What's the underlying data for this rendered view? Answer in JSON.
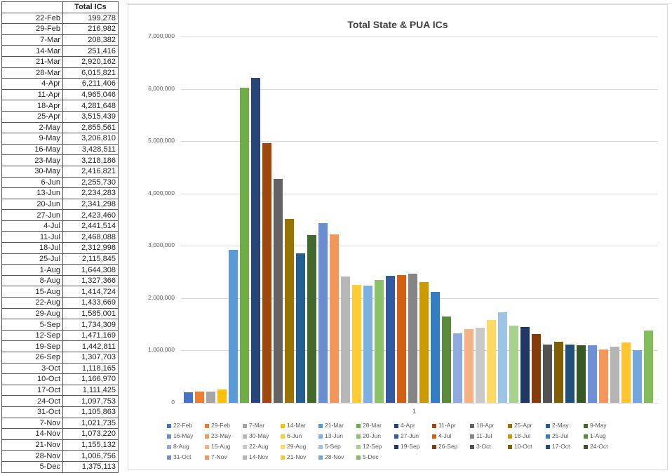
{
  "sheet": {
    "header": [
      "",
      "Total ICs"
    ],
    "rows": [
      [
        "22-Feb",
        "199,278"
      ],
      [
        "29-Feb",
        "216,982"
      ],
      [
        "7-Mar",
        "208,382"
      ],
      [
        "14-Mar",
        "251,416"
      ],
      [
        "21-Mar",
        "2,920,162"
      ],
      [
        "28-Mar",
        "6,015,821"
      ],
      [
        "4-Apr",
        "6,211,406"
      ],
      [
        "11-Apr",
        "4,965,046"
      ],
      [
        "18-Apr",
        "4,281,648"
      ],
      [
        "25-Apr",
        "3,515,439"
      ],
      [
        "2-May",
        "2,855,561"
      ],
      [
        "9-May",
        "3,206,810"
      ],
      [
        "16-May",
        "3,428,511"
      ],
      [
        "23-May",
        "3,218,186"
      ],
      [
        "30-May",
        "2,416,821"
      ],
      [
        "6-Jun",
        "2,255,730"
      ],
      [
        "13-Jun",
        "2,234,283"
      ],
      [
        "20-Jun",
        "2,341,298"
      ],
      [
        "27-Jun",
        "2,423,460"
      ],
      [
        "4-Jul",
        "2,441,514"
      ],
      [
        "11-Jul",
        "2,468,088"
      ],
      [
        "18-Jul",
        "2,312,998"
      ],
      [
        "25-Jul",
        "2,115,845"
      ],
      [
        "1-Aug",
        "1,644,308"
      ],
      [
        "8-Aug",
        "1,327,366"
      ],
      [
        "15-Aug",
        "1,414,724"
      ],
      [
        "22-Aug",
        "1,433,669"
      ],
      [
        "29-Aug",
        "1,585,001"
      ],
      [
        "5-Sep",
        "1,734,309"
      ],
      [
        "12-Sep",
        "1,471,169"
      ],
      [
        "19-Sep",
        "1,442,811"
      ],
      [
        "26-Sep",
        "1,307,703"
      ],
      [
        "3-Oct",
        "1,118,165"
      ],
      [
        "10-Oct",
        "1,166,970"
      ],
      [
        "17-Oct",
        "1,111,425"
      ],
      [
        "24-Oct",
        "1,097,753"
      ],
      [
        "31-Oct",
        "1,105,863"
      ],
      [
        "7-Nov",
        "1,021,735"
      ],
      [
        "14-Nov",
        "1,073,220"
      ],
      [
        "21-Nov",
        "1,155,132"
      ],
      [
        "28-Nov",
        "1,006,756"
      ],
      [
        "5-Dec",
        "1,375,113"
      ]
    ]
  },
  "chart_data": {
    "type": "bar",
    "title": "Total State & PUA ICs",
    "xlabel": "",
    "ylabel": "",
    "x_tick_labels": [
      "1"
    ],
    "ylim": [
      0,
      7000000
    ],
    "y_ticks": [
      "0",
      "1,000,000",
      "2,000,000",
      "3,000,000",
      "4,000,000",
      "5,000,000",
      "6,000,000",
      "7,000,000"
    ],
    "grid": true,
    "legend_position": "bottom",
    "series": [
      {
        "name": "22-Feb",
        "value": 199278,
        "color": "#4472c4"
      },
      {
        "name": "29-Feb",
        "value": 216982,
        "color": "#ed7d31"
      },
      {
        "name": "7-Mar",
        "value": 208382,
        "color": "#a5a5a5"
      },
      {
        "name": "14-Mar",
        "value": 251416,
        "color": "#ffc000"
      },
      {
        "name": "21-Mar",
        "value": 2920162,
        "color": "#5b9bd5"
      },
      {
        "name": "28-Mar",
        "value": 6015821,
        "color": "#70ad47"
      },
      {
        "name": "4-Apr",
        "value": 6211406,
        "color": "#264478"
      },
      {
        "name": "11-Apr",
        "value": 4965046,
        "color": "#9e480e"
      },
      {
        "name": "18-Apr",
        "value": 4281648,
        "color": "#636363"
      },
      {
        "name": "25-Apr",
        "value": 3515439,
        "color": "#997300"
      },
      {
        "name": "2-May",
        "value": 2855561,
        "color": "#255e91"
      },
      {
        "name": "9-May",
        "value": 3206810,
        "color": "#43682b"
      },
      {
        "name": "16-May",
        "value": 3428511,
        "color": "#698ed0"
      },
      {
        "name": "23-May",
        "value": 3218186,
        "color": "#f1975a"
      },
      {
        "name": "30-May",
        "value": 2416821,
        "color": "#b7b7b7"
      },
      {
        "name": "6-Jun",
        "value": 2255730,
        "color": "#ffcd33"
      },
      {
        "name": "13-Jun",
        "value": 2234283,
        "color": "#7cafdd"
      },
      {
        "name": "20-Jun",
        "value": 2341298,
        "color": "#8cc168"
      },
      {
        "name": "27-Jun",
        "value": 2423460,
        "color": "#335aa1"
      },
      {
        "name": "4-Jul",
        "value": 2441514,
        "color": "#d26012"
      },
      {
        "name": "11-Jul",
        "value": 2468088,
        "color": "#848484"
      },
      {
        "name": "18-Jul",
        "value": 2312998,
        "color": "#cc9a00"
      },
      {
        "name": "25-Jul",
        "value": 2115845,
        "color": "#327dc2"
      },
      {
        "name": "1-Aug",
        "value": 1644308,
        "color": "#5a8a39"
      },
      {
        "name": "8-Aug",
        "value": 1327366,
        "color": "#8faadc"
      },
      {
        "name": "15-Aug",
        "value": 1414724,
        "color": "#f4b183"
      },
      {
        "name": "22-Aug",
        "value": 1433669,
        "color": "#c9c9c9"
      },
      {
        "name": "29-Aug",
        "value": 1585001,
        "color": "#ffd966"
      },
      {
        "name": "5-Sep",
        "value": 1734309,
        "color": "#9dc3e6"
      },
      {
        "name": "12-Sep",
        "value": 1471169,
        "color": "#a9d18e"
      },
      {
        "name": "19-Sep",
        "value": 1442811,
        "color": "#1f3864"
      },
      {
        "name": "26-Sep",
        "value": 1307703,
        "color": "#843c0c"
      },
      {
        "name": "3-Oct",
        "value": 1118165,
        "color": "#525252"
      },
      {
        "name": "10-Oct",
        "value": 1166970,
        "color": "#7f6000"
      },
      {
        "name": "17-Oct",
        "value": 1111425,
        "color": "#1f4e79"
      },
      {
        "name": "24-Oct",
        "value": 1097753,
        "color": "#385723"
      },
      {
        "name": "31-Oct",
        "value": 1105863,
        "color": "#6f8fd6"
      },
      {
        "name": "7-Nov",
        "value": 1021735,
        "color": "#f4975a"
      },
      {
        "name": "14-Nov",
        "value": 1073220,
        "color": "#b4b4b4"
      },
      {
        "name": "21-Nov",
        "value": 1155132,
        "color": "#ffc52e"
      },
      {
        "name": "28-Nov",
        "value": 1006756,
        "color": "#73a7dc"
      },
      {
        "name": "5-Dec",
        "value": 1375113,
        "color": "#82bd5a"
      }
    ]
  }
}
